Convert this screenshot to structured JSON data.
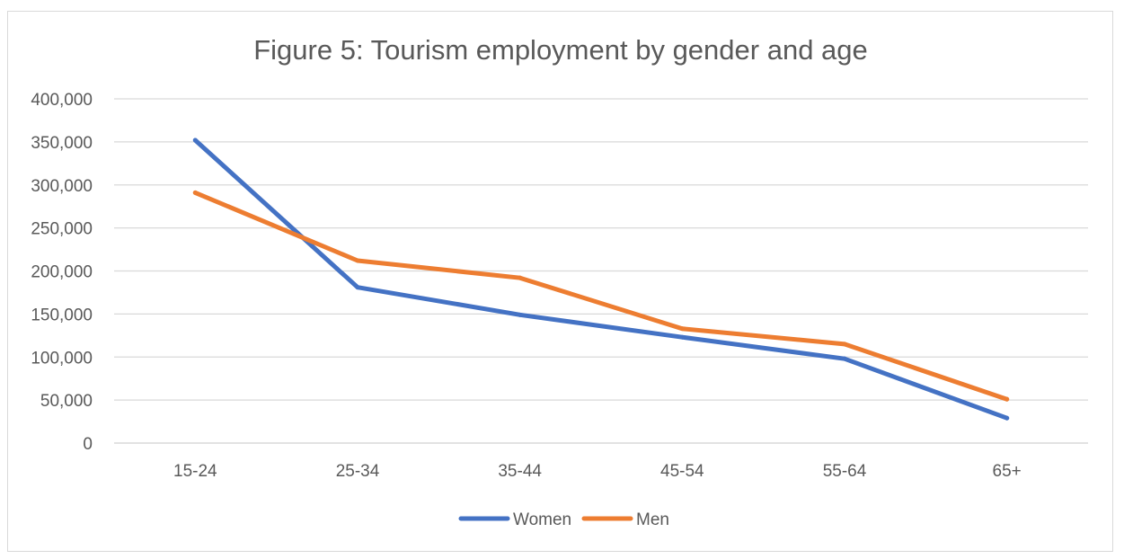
{
  "chart_data": {
    "type": "line",
    "title": "Figure 5: Tourism employment by gender and age",
    "xlabel": "",
    "ylabel": "",
    "categories": [
      "15-24",
      "25-34",
      "35-44",
      "45-54",
      "55-64",
      "65+"
    ],
    "yticks": [
      "0",
      "50,000",
      "100,000",
      "150,000",
      "200,000",
      "250,000",
      "300,000",
      "350,000",
      "400,000"
    ],
    "ylim": [
      0,
      400000
    ],
    "grid": "horizontal",
    "legend_position": "bottom",
    "series": [
      {
        "name": "Women",
        "color": "#4472C4",
        "values": [
          352000,
          181000,
          149000,
          123000,
          98000,
          29000
        ]
      },
      {
        "name": "Men",
        "color": "#ED7D31",
        "values": [
          291000,
          212000,
          192000,
          133000,
          115000,
          51000
        ]
      }
    ]
  }
}
